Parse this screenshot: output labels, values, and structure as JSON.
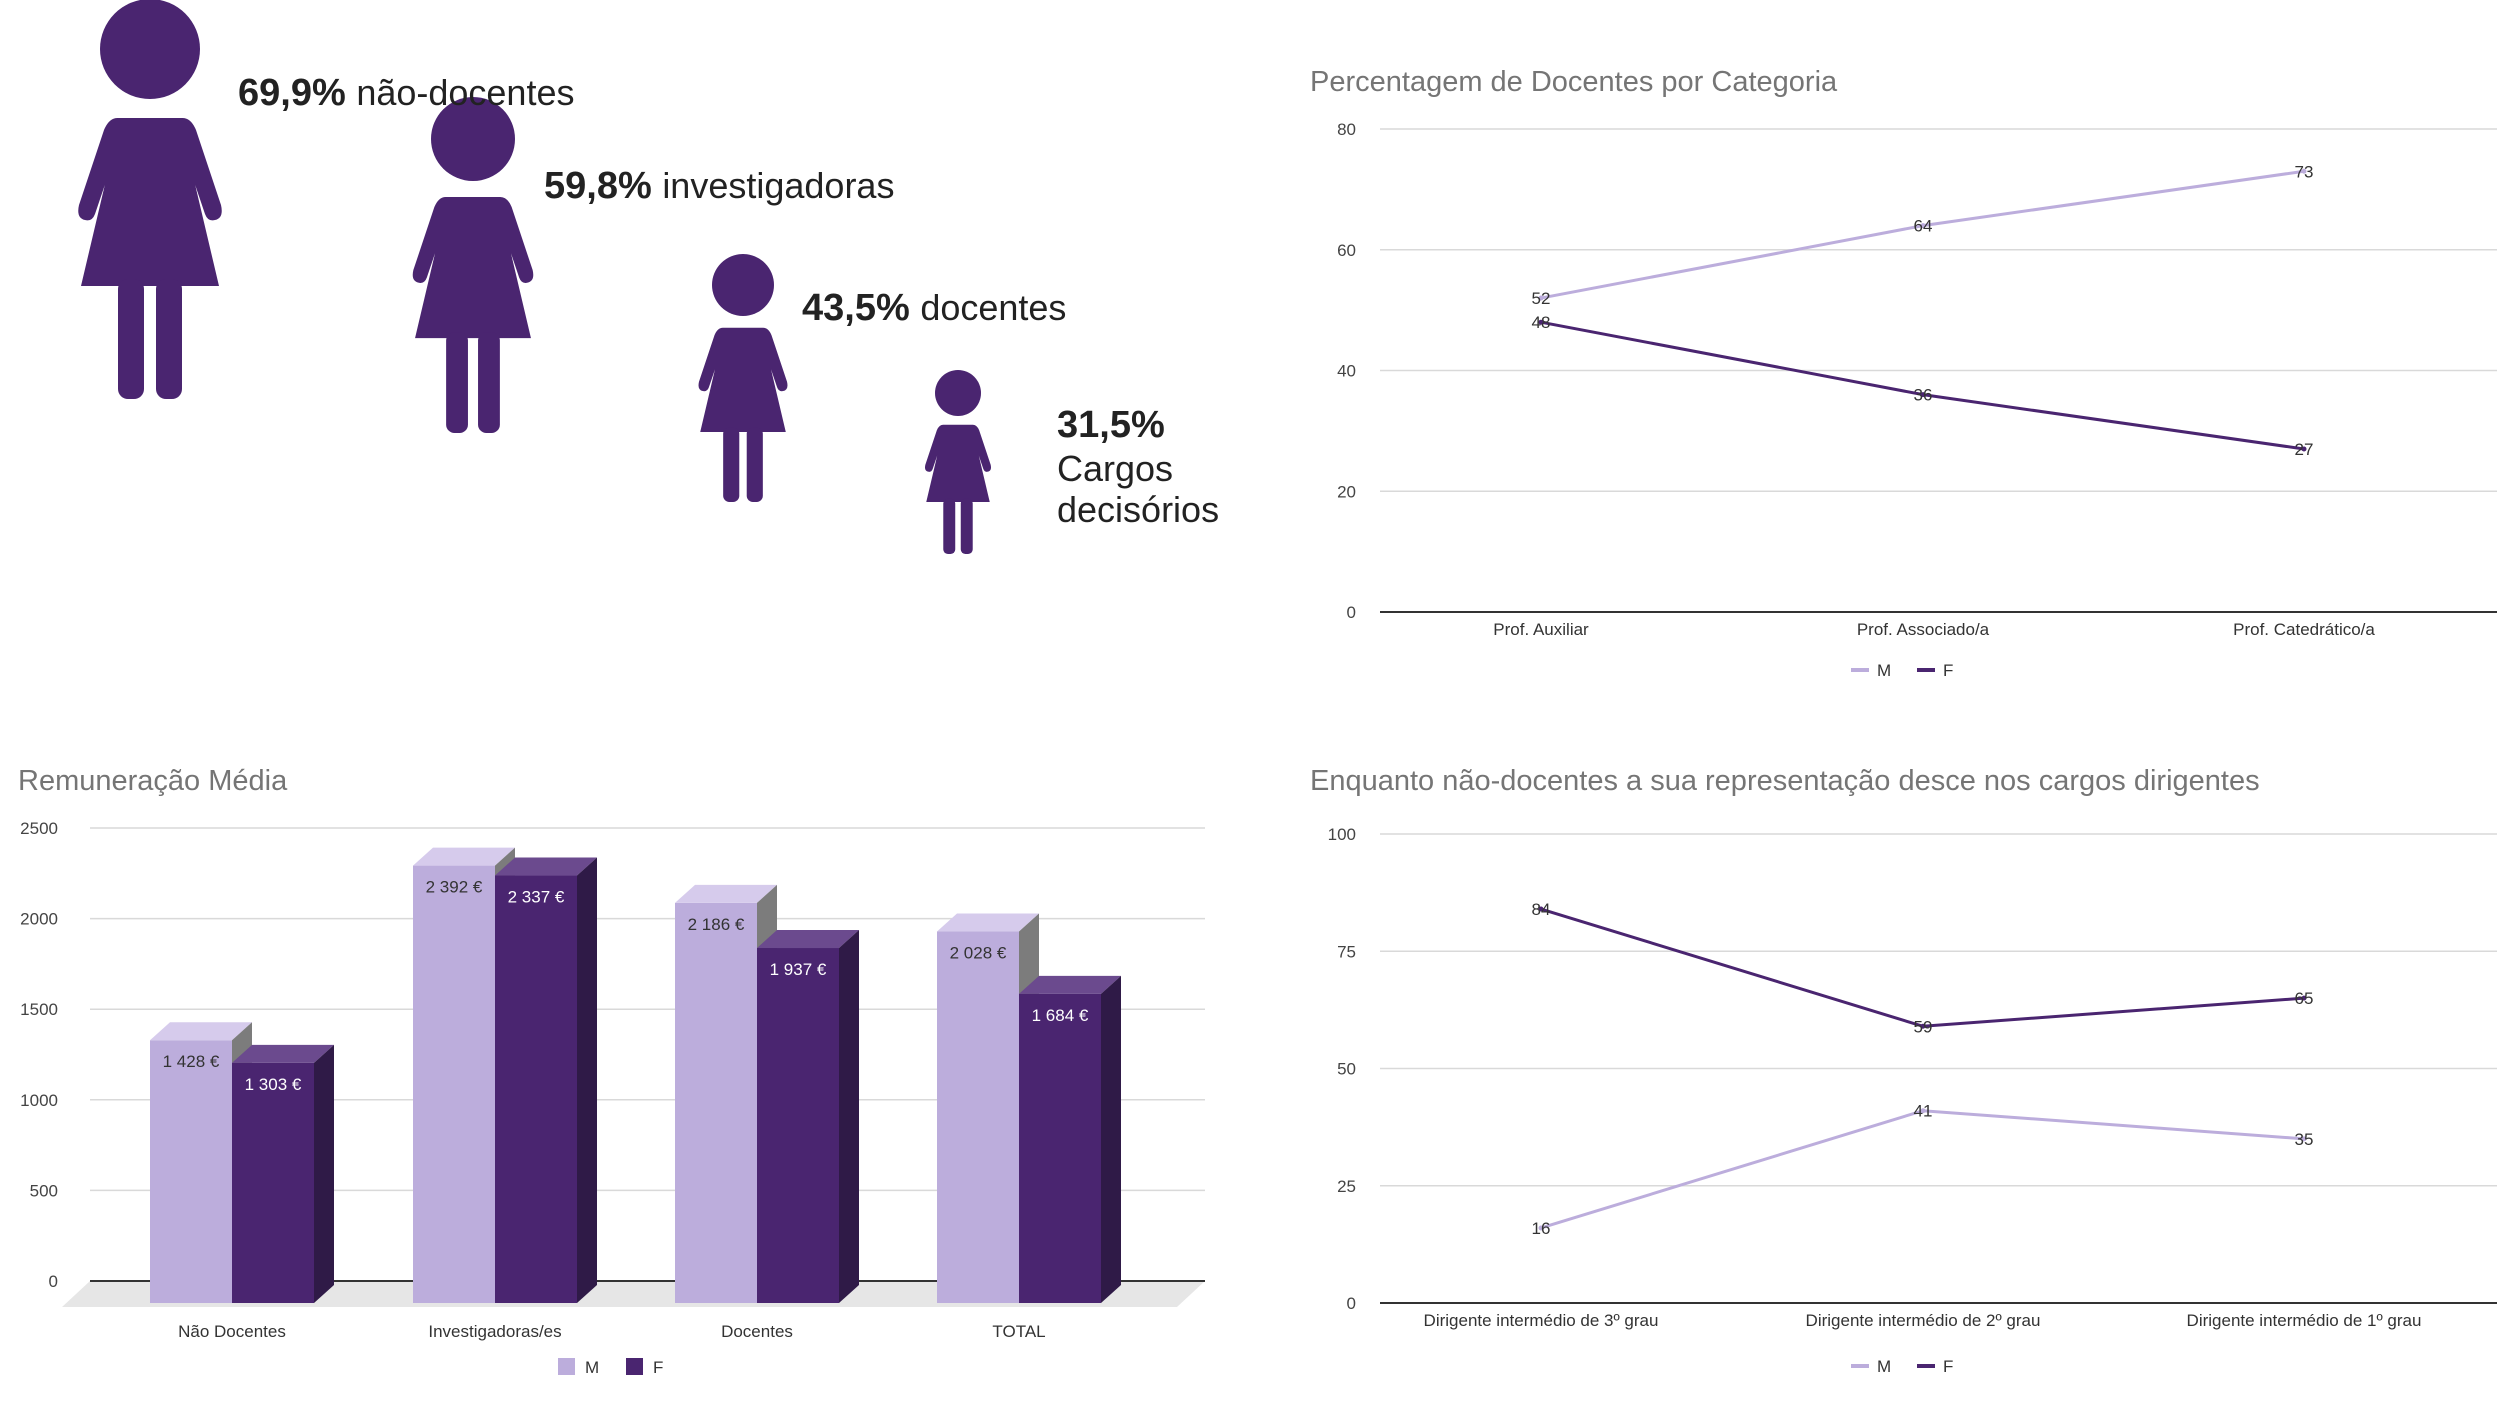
{
  "colors": {
    "purple": "#4a2570",
    "lilac": "#bcaddc",
    "text_dark": "#222222",
    "title_grey": "#757575"
  },
  "stats": [
    {
      "value": "69,9%",
      "label": "não-docentes"
    },
    {
      "value": "59,8%",
      "label": "investigadoras"
    },
    {
      "value": "43,5%",
      "label": "docentes"
    },
    {
      "value": "31,5%",
      "label_line1": "Cargos",
      "label_line2": "decisórios"
    }
  ],
  "chart_data": [
    {
      "type": "line",
      "title": "Percentagem de Docentes por Categoria",
      "categories": [
        "Prof. Auxiliar",
        "Prof. Associado/a",
        "Prof. Catedrático/a"
      ],
      "series": [
        {
          "name": "M",
          "values": [
            52,
            64,
            73
          ],
          "color": "#bcaddc"
        },
        {
          "name": "F",
          "values": [
            48,
            36,
            27
          ],
          "color": "#4a2570"
        }
      ],
      "ylim": [
        0,
        80
      ],
      "yticks": [
        "0",
        "20",
        "40",
        "60",
        "80"
      ],
      "grid": true,
      "legend": "bottom"
    },
    {
      "type": "bar",
      "title": "Remuneração Média",
      "categories": [
        "Não Docentes",
        "Investigadoras/es",
        "Docentes",
        "TOTAL"
      ],
      "series": [
        {
          "name": "M",
          "values": [
            1428,
            2392,
            2186,
            2028
          ],
          "labels": [
            "1 428 €",
            "2 392 €",
            "2 186 €",
            "2 028 €"
          ],
          "color": "#bcaddc"
        },
        {
          "name": "F",
          "values": [
            1303,
            2337,
            1937,
            1684
          ],
          "labels": [
            "1 303 €",
            "2 337 €",
            "1 937 €",
            "1 684 €"
          ],
          "color": "#4a2570"
        }
      ],
      "ylim": [
        0,
        2500
      ],
      "yticks": [
        "0",
        "500",
        "1000",
        "1500",
        "2000",
        "2500"
      ],
      "grid": true,
      "legend": "bottom"
    },
    {
      "type": "line",
      "title": "Enquanto não-docentes a sua representação desce nos cargos dirigentes",
      "categories": [
        "Dirigente intermédio de 3º grau",
        "Dirigente intermédio de 2º grau",
        "Dirigente intermédio de 1º grau"
      ],
      "series": [
        {
          "name": "M",
          "values": [
            16,
            41,
            35
          ],
          "color": "#bcaddc"
        },
        {
          "name": "F",
          "values": [
            84,
            59,
            65
          ],
          "color": "#4a2570"
        }
      ],
      "ylim": [
        0,
        100
      ],
      "yticks": [
        "0",
        "25",
        "50",
        "75",
        "100"
      ],
      "grid": true,
      "legend": "bottom"
    }
  ]
}
